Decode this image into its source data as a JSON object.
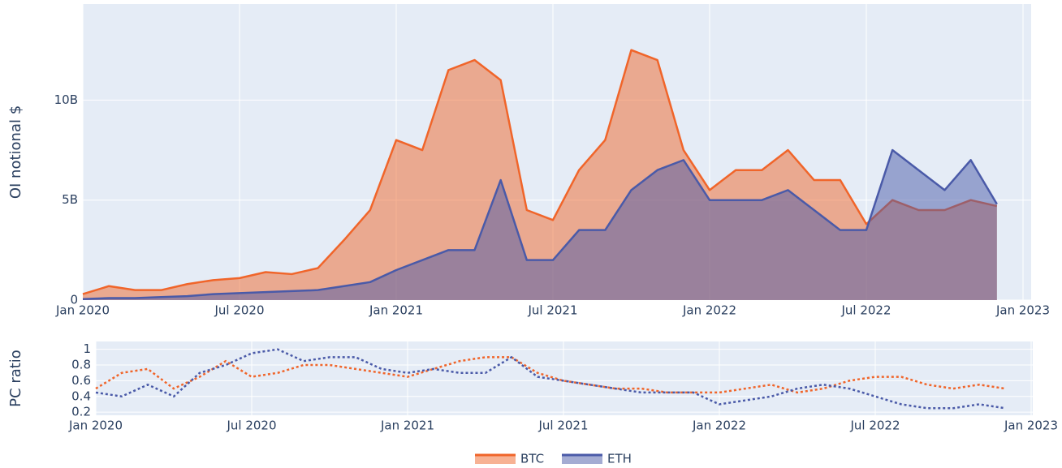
{
  "chart_data": [
    {
      "type": "area",
      "y_title": "OI notional $",
      "x": [
        "2020-01",
        "2020-02",
        "2020-03",
        "2020-04",
        "2020-05",
        "2020-06",
        "2020-07",
        "2020-08",
        "2020-09",
        "2020-10",
        "2020-11",
        "2020-12",
        "2021-01",
        "2021-02",
        "2021-03",
        "2021-04",
        "2021-05",
        "2021-06",
        "2021-07",
        "2021-08",
        "2021-09",
        "2021-10",
        "2021-11",
        "2021-12",
        "2022-01",
        "2022-02",
        "2022-03",
        "2022-04",
        "2022-05",
        "2022-06",
        "2022-07",
        "2022-08",
        "2022-09",
        "2022-10",
        "2022-11",
        "2022-12"
      ],
      "xlim": [
        "2020-01",
        "2023-01"
      ],
      "xticks": [
        {
          "value": "2020-01",
          "label": "Jan 2020"
        },
        {
          "value": "2020-07",
          "label": "Jul 2020"
        },
        {
          "value": "2021-01",
          "label": "Jan 2021"
        },
        {
          "value": "2021-07",
          "label": "Jul 2021"
        },
        {
          "value": "2022-01",
          "label": "Jan 2022"
        },
        {
          "value": "2022-07",
          "label": "Jul 2022"
        },
        {
          "value": "2023-01",
          "label": "Jan 2023"
        }
      ],
      "ylim": [
        0,
        14.8
      ],
      "yticks": [
        0,
        {
          "value": 5,
          "label": "5B"
        },
        {
          "value": 10,
          "label": "10B"
        }
      ],
      "grid": true,
      "legend": "bottom",
      "series": [
        {
          "name": "BTC",
          "color": "#f0652a",
          "values": [
            0.3,
            0.7,
            0.5,
            0.5,
            0.8,
            1.0,
            1.1,
            1.4,
            1.3,
            1.6,
            3.0,
            4.5,
            8.0,
            7.5,
            11.5,
            12.0,
            11.0,
            4.5,
            4.0,
            6.5,
            8.0,
            12.5,
            12.0,
            7.5,
            5.5,
            6.5,
            6.5,
            7.5,
            6.0,
            6.0,
            3.8,
            5.0,
            4.5,
            4.5,
            5.0,
            4.7
          ]
        },
        {
          "name": "ETH",
          "color": "#4a5aa8",
          "values": [
            0.05,
            0.1,
            0.1,
            0.15,
            0.2,
            0.3,
            0.35,
            0.4,
            0.45,
            0.5,
            0.7,
            0.9,
            1.5,
            2.0,
            2.5,
            2.5,
            6.0,
            2.0,
            2.0,
            3.5,
            3.5,
            5.5,
            6.5,
            7.0,
            5.0,
            5.0,
            5.0,
            5.5,
            4.5,
            3.5,
            3.5,
            7.5,
            6.5,
            5.5,
            7.0,
            4.8
          ]
        }
      ]
    },
    {
      "type": "line",
      "y_title": "PC ratio",
      "line_dash": "dot",
      "x": [
        "2020-01",
        "2020-02",
        "2020-03",
        "2020-04",
        "2020-05",
        "2020-06",
        "2020-07",
        "2020-08",
        "2020-09",
        "2020-10",
        "2020-11",
        "2020-12",
        "2021-01",
        "2021-02",
        "2021-03",
        "2021-04",
        "2021-05",
        "2021-06",
        "2021-07",
        "2021-08",
        "2021-09",
        "2021-10",
        "2021-11",
        "2021-12",
        "2022-01",
        "2022-02",
        "2022-03",
        "2022-04",
        "2022-05",
        "2022-06",
        "2022-07",
        "2022-08",
        "2022-09",
        "2022-10",
        "2022-11",
        "2022-12"
      ],
      "xlim": [
        "2020-01",
        "2023-01"
      ],
      "xticks": [
        {
          "value": "2020-01",
          "label": "Jan 2020"
        },
        {
          "value": "2020-07",
          "label": "Jul 2020"
        },
        {
          "value": "2021-01",
          "label": "Jan 2021"
        },
        {
          "value": "2021-07",
          "label": "Jul 2021"
        },
        {
          "value": "2022-01",
          "label": "Jan 2022"
        },
        {
          "value": "2022-07",
          "label": "Jul 2022"
        },
        {
          "value": "2023-01",
          "label": "Jan 2023"
        }
      ],
      "ylim": [
        0.16,
        1.1
      ],
      "yticks": [
        0.2,
        0.4,
        0.6,
        0.8,
        1
      ],
      "grid": true,
      "series": [
        {
          "color": "#f0652a",
          "values": [
            0.5,
            0.7,
            0.75,
            0.5,
            0.65,
            0.85,
            0.65,
            0.7,
            0.8,
            0.8,
            0.75,
            0.7,
            0.65,
            0.75,
            0.85,
            0.9,
            0.9,
            0.7,
            0.6,
            0.55,
            0.5,
            0.5,
            0.45,
            0.45,
            0.45,
            0.5,
            0.55,
            0.45,
            0.5,
            0.6,
            0.65,
            0.65,
            0.55,
            0.5,
            0.55,
            0.5
          ]
        },
        {
          "color": "#4a5aa8",
          "values": [
            0.45,
            0.4,
            0.55,
            0.4,
            0.7,
            0.8,
            0.95,
            1.0,
            0.85,
            0.9,
            0.9,
            0.75,
            0.7,
            0.75,
            0.7,
            0.7,
            0.9,
            0.65,
            0.6,
            0.55,
            0.5,
            0.45,
            0.45,
            0.45,
            0.3,
            0.35,
            0.4,
            0.5,
            0.55,
            0.5,
            0.4,
            0.3,
            0.25,
            0.25,
            0.3,
            0.25
          ]
        }
      ]
    }
  ]
}
